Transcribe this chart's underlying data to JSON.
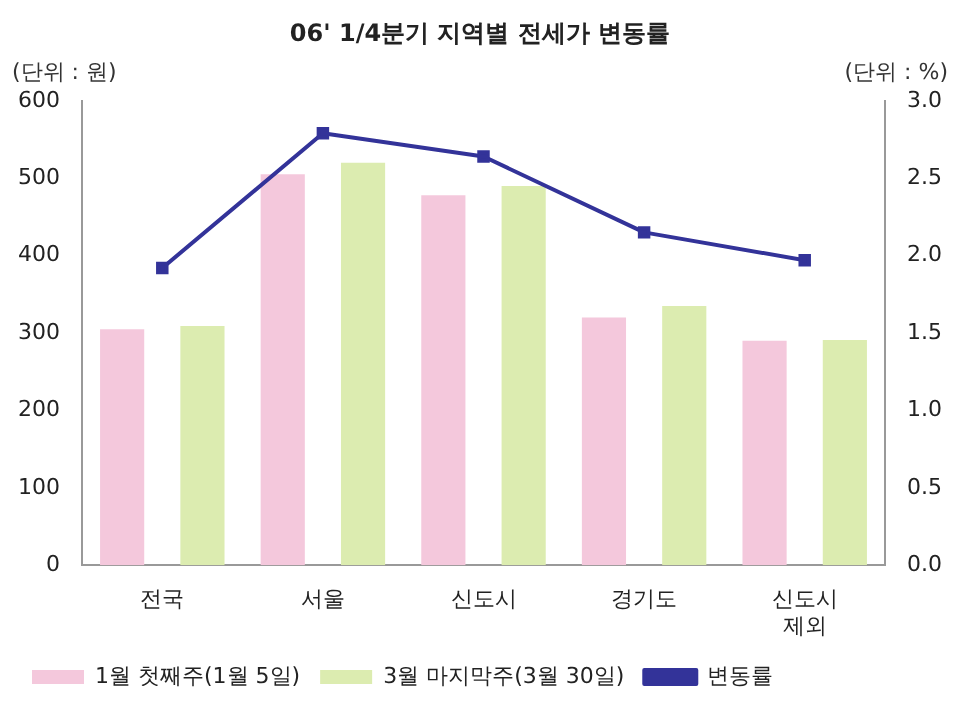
{
  "chart_data": {
    "type": "bar",
    "title": "06' 1/4분기 지역별 전세가 변동률",
    "ylabel": "(단위 : 원)",
    "y2label": "(단위 : %)",
    "categories": [
      "전국",
      "서울",
      "신도시",
      "경기도",
      "신도시 제외"
    ],
    "series": [
      {
        "name": "1월 첫째주(1월 5일)",
        "color": "#f4c8dc",
        "values": [
          305,
          505,
          478,
          320,
          290
        ]
      },
      {
        "name": "3월 마지막주(3월 30일)",
        "color": "#dcecb0",
        "values": [
          309,
          520,
          490,
          335,
          291
        ]
      },
      {
        "name": "변동률",
        "type": "line",
        "axis": "y2",
        "color": "#333399",
        "values": [
          1.92,
          2.79,
          2.64,
          2.15,
          1.97
        ]
      }
    ],
    "ylim": [
      0,
      600
    ],
    "yticks": [
      0,
      100,
      200,
      300,
      400,
      500,
      600
    ],
    "y2lim": [
      0,
      3.0
    ],
    "y2ticks": [
      {
        "value": 0,
        "label": "0.0"
      },
      {
        "value": 0.5,
        "label": "0.5"
      },
      {
        "value": 1,
        "label": "1.0"
      },
      {
        "value": 1.5,
        "label": "1.5"
      },
      {
        "value": 2,
        "label": "2.0"
      },
      {
        "value": 2.5,
        "label": "2.5"
      },
      {
        "value": 3,
        "label": "3.0"
      }
    ],
    "grid": false,
    "legend": "bottom",
    "marker": "square"
  }
}
